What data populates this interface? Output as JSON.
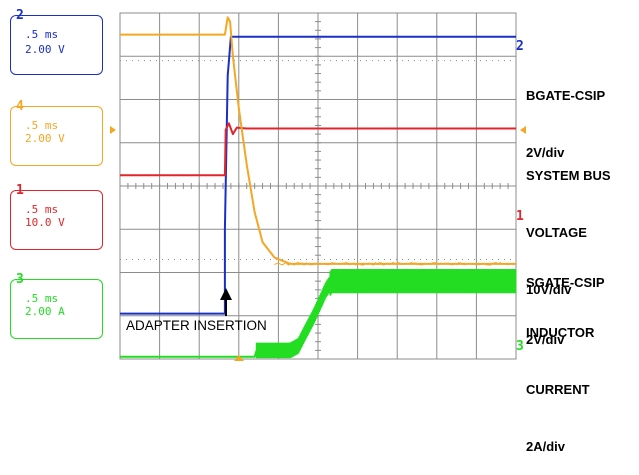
{
  "colors": {
    "ch2": "#1a2fc8",
    "ch4": "#f5a623",
    "ch1": "#e0262b",
    "ch3": "#22dd22",
    "grid": "#8c8c8c",
    "background": "#ffffff"
  },
  "channel_readouts": [
    {
      "channel": "2",
      "timebase": ".5 ms",
      "scale": "2.00 V",
      "color": "#1a2fc8"
    },
    {
      "channel": "4",
      "timebase": ".5 ms",
      "scale": "2.00 V",
      "color": "#f5a623"
    },
    {
      "channel": "1",
      "timebase": ".5 ms",
      "scale": "10.0 V",
      "color": "#e0262b"
    },
    {
      "channel": "3",
      "timebase": ".5 ms",
      "scale": "2.00 A",
      "color": "#22dd22"
    }
  ],
  "trace_labels": [
    {
      "channel": "2",
      "lines": [
        "BGATE-CSIP",
        "2V/div"
      ]
    },
    {
      "channel": "1",
      "lines": [
        "SYSTEM BUS",
        "VOLTAGE",
        "10V/div"
      ]
    },
    {
      "channel": "4",
      "lines": [
        "SGATE-CSIP",
        "2V/div"
      ]
    },
    {
      "channel": "3",
      "lines": [
        "INDUCTOR",
        "CURRENT",
        "2A/div"
      ]
    }
  ],
  "annotation": "ADAPTER INSERTION",
  "chart_data": {
    "type": "line",
    "title": "",
    "x_unit": "div",
    "y_unit": "div",
    "xlim": [
      0,
      10
    ],
    "ylim": [
      0,
      8
    ],
    "grid": true,
    "series": [
      {
        "name": "BGATE-CSIP",
        "channel": "2",
        "color": "#1a2fc8",
        "points": [
          [
            0,
            1.05
          ],
          [
            2.65,
            1.05
          ],
          [
            2.65,
            3.0
          ],
          [
            2.72,
            6.55
          ],
          [
            2.8,
            7.45
          ],
          [
            3.2,
            7.45
          ],
          [
            10,
            7.45
          ]
        ]
      },
      {
        "name": "SYSTEM BUS VOLTAGE",
        "channel": "1",
        "color": "#e0262b",
        "points": [
          [
            0,
            4.25
          ],
          [
            2.65,
            4.25
          ],
          [
            2.67,
            5.3
          ],
          [
            2.75,
            5.45
          ],
          [
            2.85,
            5.2
          ],
          [
            2.95,
            5.35
          ],
          [
            3.2,
            5.33
          ],
          [
            10,
            5.33
          ]
        ]
      },
      {
        "name": "SGATE-CSIP",
        "channel": "4",
        "color": "#f5a623",
        "points": [
          [
            0,
            7.5
          ],
          [
            2.65,
            7.5
          ],
          [
            2.72,
            7.9
          ],
          [
            2.78,
            7.8
          ],
          [
            2.85,
            7.0
          ],
          [
            3.0,
            5.8
          ],
          [
            3.2,
            4.5
          ],
          [
            3.4,
            3.4
          ],
          [
            3.6,
            2.7
          ],
          [
            3.9,
            2.35
          ],
          [
            4.3,
            2.2
          ],
          [
            5.0,
            2.2
          ],
          [
            10,
            2.2
          ]
        ]
      },
      {
        "name": "INDUCTOR CURRENT",
        "channel": "3",
        "color": "#22dd22",
        "points": [
          [
            0,
            0.05
          ],
          [
            3.4,
            0.05
          ],
          [
            3.45,
            0.2
          ],
          [
            4.3,
            0.2
          ],
          [
            4.5,
            0.3
          ],
          [
            4.9,
            1.0
          ],
          [
            5.2,
            1.6
          ],
          [
            5.35,
            1.8
          ],
          [
            10,
            1.8
          ]
        ]
      }
    ]
  }
}
